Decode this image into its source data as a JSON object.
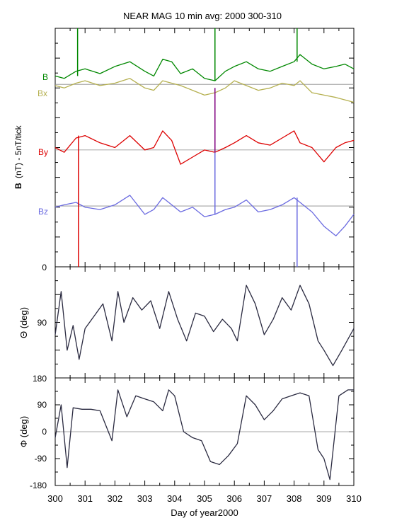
{
  "chart_data": {
    "type": "line",
    "title": "NEAR MAG 10 min avg: 2000 300-310",
    "xlabel": "Day of year2000",
    "xlim": [
      300,
      310
    ],
    "x_ticks": [
      "300",
      "301",
      "302",
      "303",
      "304",
      "305",
      "306",
      "307",
      "308",
      "309",
      "310"
    ],
    "panels": [
      {
        "ylabel_bold": "B",
        "ylabel_rest": "(nT) - 5nT/tick",
        "y_tick_labels": [
          "0"
        ],
        "offset_lines": {
          "B": 0.765,
          "Bx": 0.765,
          "By": 0.49,
          "Bz": 0.255
        },
        "series": [
          {
            "name": "B",
            "color": "#008800",
            "x": [
              300,
              300.3,
              300.7,
              301,
              301.5,
              302,
              302.5,
              303,
              303.3,
              303.6,
              303.9,
              304.2,
              304.6,
              305,
              305.35,
              305.7,
              306,
              306.4,
              306.8,
              307.2,
              307.6,
              308,
              308.2,
              308.6,
              309,
              309.4,
              309.7,
              310
            ],
            "y": [
              0.8,
              0.79,
              0.82,
              0.83,
              0.81,
              0.84,
              0.86,
              0.82,
              0.8,
              0.87,
              0.86,
              0.81,
              0.83,
              0.79,
              0.78,
              0.82,
              0.84,
              0.86,
              0.83,
              0.82,
              0.84,
              0.86,
              0.89,
              0.85,
              0.83,
              0.84,
              0.85,
              0.83
            ]
          },
          {
            "name": "Bx",
            "color": "#b5b050",
            "x": [
              300,
              300.3,
              300.7,
              301,
              301.5,
              302,
              302.5,
              303,
              303.3,
              303.6,
              303.9,
              304.2,
              304.6,
              305,
              305.35,
              305.7,
              306,
              306.4,
              306.8,
              307.2,
              307.6,
              308,
              308.2,
              308.6,
              309,
              309.4,
              309.7,
              310
            ],
            "y": [
              0.76,
              0.75,
              0.77,
              0.78,
              0.76,
              0.77,
              0.79,
              0.75,
              0.74,
              0.78,
              0.77,
              0.76,
              0.74,
              0.72,
              0.73,
              0.75,
              0.78,
              0.76,
              0.74,
              0.75,
              0.77,
              0.76,
              0.78,
              0.73,
              0.72,
              0.71,
              0.7,
              0.69
            ]
          },
          {
            "name": "By",
            "color": "#dd0000",
            "x": [
              300,
              300.3,
              300.7,
              301,
              301.5,
              302,
              302.5,
              303,
              303.3,
              303.6,
              303.9,
              304.2,
              304.6,
              305,
              305.35,
              305.7,
              306,
              306.4,
              306.8,
              307.2,
              307.6,
              308,
              308.2,
              308.6,
              309,
              309.4,
              309.7,
              310
            ],
            "y": [
              0.5,
              0.48,
              0.54,
              0.55,
              0.52,
              0.5,
              0.55,
              0.49,
              0.5,
              0.57,
              0.53,
              0.43,
              0.46,
              0.49,
              0.48,
              0.5,
              0.52,
              0.55,
              0.52,
              0.51,
              0.54,
              0.57,
              0.52,
              0.5,
              0.44,
              0.5,
              0.52,
              0.53
            ]
          },
          {
            "name": "Bz",
            "color": "#6a6ae0",
            "x": [
              300,
              300.3,
              300.7,
              301,
              301.5,
              302,
              302.5,
              303,
              303.3,
              303.6,
              303.9,
              304.2,
              304.6,
              305,
              305.35,
              305.7,
              306,
              306.4,
              306.8,
              307.2,
              307.6,
              308,
              308.2,
              308.6,
              309,
              309.4,
              309.7,
              310
            ],
            "y": [
              0.25,
              0.26,
              0.27,
              0.25,
              0.24,
              0.26,
              0.3,
              0.22,
              0.24,
              0.29,
              0.26,
              0.23,
              0.25,
              0.21,
              0.22,
              0.24,
              0.25,
              0.28,
              0.23,
              0.24,
              0.26,
              0.29,
              0.27,
              0.23,
              0.17,
              0.13,
              0.17,
              0.22
            ]
          }
        ]
      },
      {
        "ylabel": "Θ (deg)",
        "ylim": [
          0,
          180
        ],
        "y_tick_labels": [
          "90"
        ],
        "series": [
          {
            "name": "Theta",
            "color": "#2a2a40",
            "x": [
              300,
              300.2,
              300.4,
              300.6,
              300.8,
              301,
              301.3,
              301.6,
              301.9,
              302.1,
              302.3,
              302.6,
              302.9,
              303.2,
              303.5,
              303.8,
              304.1,
              304.4,
              304.7,
              305,
              305.3,
              305.6,
              305.9,
              306.1,
              306.4,
              306.7,
              307,
              307.3,
              307.6,
              307.9,
              308.2,
              308.5,
              308.8,
              309,
              309.3,
              309.6,
              310
            ],
            "y": [
              70,
              140,
              45,
              85,
              30,
              80,
              100,
              120,
              60,
              140,
              90,
              130,
              110,
              125,
              80,
              140,
              95,
              60,
              105,
              100,
              75,
              95,
              80,
              60,
              150,
              120,
              70,
              95,
              130,
              110,
              150,
              120,
              60,
              45,
              20,
              45,
              80
            ]
          }
        ]
      },
      {
        "ylabel": "Φ (deg)",
        "ylim": [
          -180,
          180
        ],
        "y_tick_labels": [
          "180",
          "90",
          "0",
          "-90",
          "-180"
        ],
        "series": [
          {
            "name": "Phi",
            "color": "#2a2a40",
            "x": [
              300,
              300.2,
              300.4,
              300.6,
              300.9,
              301.2,
              301.5,
              301.9,
              302.1,
              302.4,
              302.7,
              303.0,
              303.3,
              303.6,
              303.8,
              304.0,
              304.3,
              304.6,
              304.9,
              305.2,
              305.5,
              305.8,
              306.1,
              306.4,
              306.7,
              307.0,
              307.3,
              307.6,
              307.9,
              308.2,
              308.5,
              308.8,
              309.0,
              309.2,
              309.5,
              309.8,
              310
            ],
            "y": [
              -20,
              90,
              -120,
              80,
              75,
              75,
              70,
              -30,
              140,
              50,
              120,
              110,
              100,
              70,
              140,
              120,
              0,
              -20,
              -30,
              -100,
              -110,
              -80,
              -40,
              120,
              90,
              40,
              70,
              110,
              120,
              130,
              120,
              -60,
              -90,
              -160,
              120,
              140,
              140
            ]
          }
        ]
      }
    ],
    "spikes": [
      {
        "x": 300.75,
        "color": "#008800",
        "y1": 1.0,
        "y2": 0.8,
        "panel": 0
      },
      {
        "x": 300.78,
        "color": "#dd0000",
        "y1": 0.55,
        "y2": 0.0,
        "panel": 0
      },
      {
        "x": 305.35,
        "color": "#008800",
        "y1": 1.0,
        "y2": 0.78,
        "panel": 0
      },
      {
        "x": 305.35,
        "color": "#800080",
        "y1": 0.75,
        "y2": 0.48,
        "panel": 0
      },
      {
        "x": 305.35,
        "color": "#6a6ae0",
        "y1": 0.48,
        "y2": 0.22,
        "panel": 0
      },
      {
        "x": 308.1,
        "color": "#008800",
        "y1": 1.0,
        "y2": 0.86,
        "panel": 0
      },
      {
        "x": 308.1,
        "color": "#6a6ae0",
        "y1": 0.29,
        "y2": 0.0,
        "panel": 0
      }
    ]
  }
}
